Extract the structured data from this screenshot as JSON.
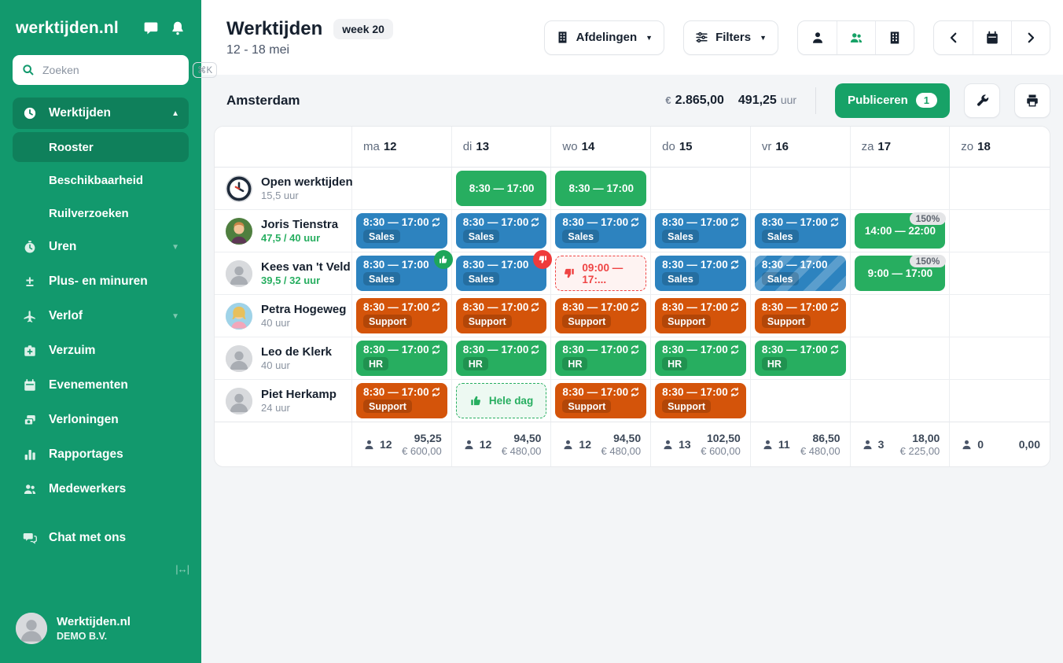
{
  "sidebar": {
    "logo": "werktijden.nl",
    "search": {
      "placeholder": "Zoeken",
      "shortcut": "⌘K"
    },
    "nav": [
      {
        "label": "Werktijden",
        "icon": "clock",
        "caret": "up",
        "active": true
      },
      {
        "label": "Rooster",
        "sub": true,
        "selected": true
      },
      {
        "label": "Beschikbaarheid",
        "sub": true
      },
      {
        "label": "Ruilverzoeken",
        "sub": true
      },
      {
        "label": "Uren",
        "icon": "stopwatch",
        "caret": "down"
      },
      {
        "label": "Plus- en minuren",
        "icon": "plusminus"
      },
      {
        "label": "Verlof",
        "icon": "plane",
        "caret": "down"
      },
      {
        "label": "Verzuim",
        "icon": "firstaid"
      },
      {
        "label": "Evenementen",
        "icon": "calendar"
      },
      {
        "label": "Verloningen",
        "icon": "money"
      },
      {
        "label": "Rapportages",
        "icon": "chart"
      },
      {
        "label": "Medewerkers",
        "icon": "people"
      },
      {
        "label": "Chat met ons",
        "icon": "chat2",
        "gap": true
      }
    ],
    "collapse_glyph": "|↔|",
    "account": {
      "name": "Werktijden.nl",
      "company": "DEMO B.V."
    }
  },
  "header": {
    "title": "Werktijden",
    "week_badge": "week 20",
    "date_range": "12 - 18 mei",
    "afdelingen_label": "Afdelingen",
    "filters_label": "Filters"
  },
  "schedule": {
    "location": "Amsterdam",
    "total_money_symbol": "€",
    "total_money_value": "2.865,00",
    "total_hours_value": "491,25",
    "hours_unit": "uur",
    "publish": {
      "label": "Publiceren",
      "count": "1"
    },
    "days": [
      {
        "abbr": "ma",
        "num": "12"
      },
      {
        "abbr": "di",
        "num": "13"
      },
      {
        "abbr": "wo",
        "num": "14"
      },
      {
        "abbr": "do",
        "num": "15"
      },
      {
        "abbr": "vr",
        "num": "16"
      },
      {
        "abbr": "za",
        "num": "17"
      },
      {
        "abbr": "zo",
        "num": "18"
      }
    ],
    "rows": [
      {
        "name": "Open werktijden",
        "hours": "15,5 uur",
        "hours_green": false,
        "avatar": "clock",
        "cells": [
          null,
          {
            "kind": "open",
            "time": "8:30 — 17:00"
          },
          {
            "kind": "open",
            "time": "8:30 — 17:00"
          },
          null,
          null,
          null,
          null
        ]
      },
      {
        "name": "Joris Tienstra",
        "hours": "47,5 / 40 uur",
        "hours_green": true,
        "avatar": "photo-green",
        "cells": [
          {
            "kind": "shift",
            "color": "blue",
            "time": "8:30 — 17:00",
            "label": "Sales",
            "sync": true
          },
          {
            "kind": "shift",
            "color": "blue",
            "time": "8:30 — 17:00",
            "label": "Sales",
            "sync": true
          },
          {
            "kind": "shift",
            "color": "blue",
            "time": "8:30 — 17:00",
            "label": "Sales",
            "sync": true
          },
          {
            "kind": "shift",
            "color": "blue",
            "time": "8:30 — 17:00",
            "label": "Sales",
            "sync": true
          },
          {
            "kind": "shift",
            "color": "blue",
            "time": "8:30 — 17:00",
            "label": "Sales",
            "sync": true
          },
          {
            "kind": "open",
            "time": "14:00 — 22:00",
            "badge": "150%"
          },
          null
        ]
      },
      {
        "name": "Kees van 't Veld",
        "hours": "39,5 / 32 uur",
        "hours_green": true,
        "avatar": "gray",
        "cells": [
          {
            "kind": "shift",
            "color": "blue",
            "time": "8:30 — 17:00",
            "label": "Sales",
            "thumb": "up"
          },
          {
            "kind": "shift",
            "color": "blue",
            "time": "8:30 — 17:00",
            "label": "Sales",
            "thumb": "down"
          },
          {
            "kind": "declined",
            "time": "09:00 — 17:..."
          },
          {
            "kind": "shift",
            "color": "blue",
            "time": "8:30 — 17:00",
            "label": "Sales",
            "sync": true
          },
          {
            "kind": "shift",
            "color": "blue",
            "time": "8:30 — 17:00",
            "label": "Sales",
            "striped": true
          },
          {
            "kind": "open",
            "time": "9:00 — 17:00",
            "badge": "150%"
          },
          null
        ]
      },
      {
        "name": "Petra Hogeweg",
        "hours": "40 uur",
        "hours_green": false,
        "avatar": "photo-blue",
        "cells": [
          {
            "kind": "shift",
            "color": "orange",
            "time": "8:30 — 17:00",
            "label": "Support",
            "sync": true
          },
          {
            "kind": "shift",
            "color": "orange",
            "time": "8:30 — 17:00",
            "label": "Support",
            "sync": true
          },
          {
            "kind": "shift",
            "color": "orange",
            "time": "8:30 — 17:00",
            "label": "Support",
            "sync": true
          },
          {
            "kind": "shift",
            "color": "orange",
            "time": "8:30 — 17:00",
            "label": "Support",
            "sync": true
          },
          {
            "kind": "shift",
            "color": "orange",
            "time": "8:30 — 17:00",
            "label": "Support",
            "sync": true
          },
          null,
          null
        ]
      },
      {
        "name": "Leo de Klerk",
        "hours": "40 uur",
        "hours_green": false,
        "avatar": "gray",
        "cells": [
          {
            "kind": "shift",
            "color": "green",
            "time": "8:30 — 17:00",
            "label": "HR",
            "sync": true
          },
          {
            "kind": "shift",
            "color": "green",
            "time": "8:30 — 17:00",
            "label": "HR",
            "sync": true
          },
          {
            "kind": "shift",
            "color": "green",
            "time": "8:30 — 17:00",
            "label": "HR",
            "sync": true
          },
          {
            "kind": "shift",
            "color": "green",
            "time": "8:30 — 17:00",
            "label": "HR",
            "sync": true
          },
          {
            "kind": "shift",
            "color": "green",
            "time": "8:30 — 17:00",
            "label": "HR",
            "sync": true
          },
          null,
          null
        ]
      },
      {
        "name": "Piet Herkamp",
        "hours": "24 uur",
        "hours_green": false,
        "avatar": "gray",
        "cells": [
          {
            "kind": "shift",
            "color": "orange",
            "time": "8:30 — 17:00",
            "label": "Support",
            "sync": true
          },
          {
            "kind": "allday",
            "label": "Hele dag"
          },
          {
            "kind": "shift",
            "color": "orange",
            "time": "8:30 — 17:00",
            "label": "Support",
            "sync": true
          },
          {
            "kind": "shift",
            "color": "orange",
            "time": "8:30 — 17:00",
            "label": "Support",
            "sync": true
          },
          null,
          null,
          null
        ]
      }
    ],
    "totals": [
      {
        "count": "12",
        "hours": "95,25",
        "money": "€ 600,00"
      },
      {
        "count": "12",
        "hours": "94,50",
        "money": "€ 480,00"
      },
      {
        "count": "12",
        "hours": "94,50",
        "money": "€ 480,00"
      },
      {
        "count": "13",
        "hours": "102,50",
        "money": "€ 600,00"
      },
      {
        "count": "11",
        "hours": "86,50",
        "money": "€ 480,00"
      },
      {
        "count": "3",
        "hours": "18,00",
        "money": "€ 225,00"
      },
      {
        "count": "0",
        "hours": "0,00",
        "money": null
      }
    ]
  }
}
